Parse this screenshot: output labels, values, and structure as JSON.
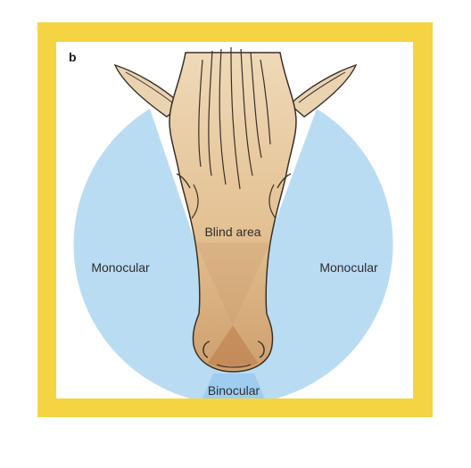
{
  "figure": {
    "panel_label": "b",
    "labels": {
      "monocular_left": "Monocular",
      "monocular_right": "Monocular",
      "blind_area": "Blind area",
      "binocular": "Binocular"
    }
  },
  "colors": {
    "frame": "#f5d443",
    "field_of_view": "#b9dcf3",
    "head_skin": "#e6c69a",
    "head_shadow": "#c99a6c",
    "outline": "#3a2f28",
    "label_text": "#2d2d2d"
  }
}
